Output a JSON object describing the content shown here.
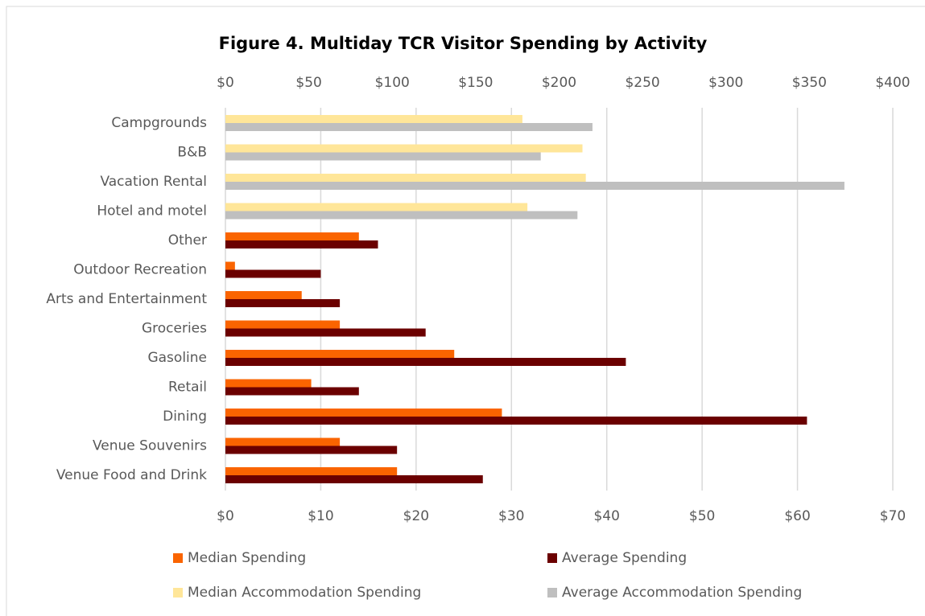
{
  "chart_data": {
    "type": "bar",
    "orientation": "horizontal",
    "title": "Figure 4. Multiday TCR Visitor Spending by Activity",
    "categories": [
      "Campgrounds",
      "B&B",
      "Vacation Rental",
      "Hotel and motel",
      "Other",
      "Outdoor Recreation",
      "Arts and Entertainment",
      "Groceries",
      "Gasoline",
      "Retail",
      "Dining",
      "Venue Souvenirs",
      "Venue Food and Drink"
    ],
    "series": [
      {
        "name": "Median Spending",
        "color": "#fa6400",
        "values": [
          null,
          null,
          null,
          null,
          14,
          1,
          8,
          12,
          24,
          9,
          29,
          12,
          18
        ]
      },
      {
        "name": "Average Spending",
        "color": "#6b0000",
        "values": [
          null,
          null,
          null,
          null,
          16,
          10,
          12,
          21,
          42,
          14,
          61,
          18,
          27
        ]
      },
      {
        "name": "Median Accommodation Spending",
        "color": "#ffe699",
        "axis": "x2",
        "values": [
          178,
          214,
          216,
          181,
          null,
          null,
          null,
          null,
          null,
          null,
          null,
          null,
          null
        ]
      },
      {
        "name": "Average Accommodation Spending",
        "color": "#bfbfbf",
        "axis": "x2",
        "values": [
          220,
          189,
          371,
          211,
          null,
          null,
          null,
          null,
          null,
          null,
          null,
          null,
          null
        ]
      }
    ],
    "xlim": [
      0,
      70
    ],
    "xticks": [
      {
        "value": 0,
        "label": "$0"
      },
      {
        "value": 10,
        "label": "$10"
      },
      {
        "value": 20,
        "label": "$20"
      },
      {
        "value": 30,
        "label": "$30"
      },
      {
        "value": 40,
        "label": "$40"
      },
      {
        "value": 50,
        "label": "$50"
      },
      {
        "value": 60,
        "label": "$60"
      },
      {
        "value": 70,
        "label": "$70"
      }
    ],
    "x2lim": [
      0,
      400
    ],
    "x2ticks": [
      {
        "value": 0,
        "label": "$0"
      },
      {
        "value": 50,
        "label": "$50"
      },
      {
        "value": 100,
        "label": "$100"
      },
      {
        "value": 150,
        "label": "$150"
      },
      {
        "value": 200,
        "label": "$200"
      },
      {
        "value": 250,
        "label": "$250"
      },
      {
        "value": 300,
        "label": "$300"
      },
      {
        "value": 350,
        "label": "$350"
      },
      {
        "value": 400,
        "label": "$400"
      }
    ],
    "grid": true,
    "legend": "bottom"
  }
}
